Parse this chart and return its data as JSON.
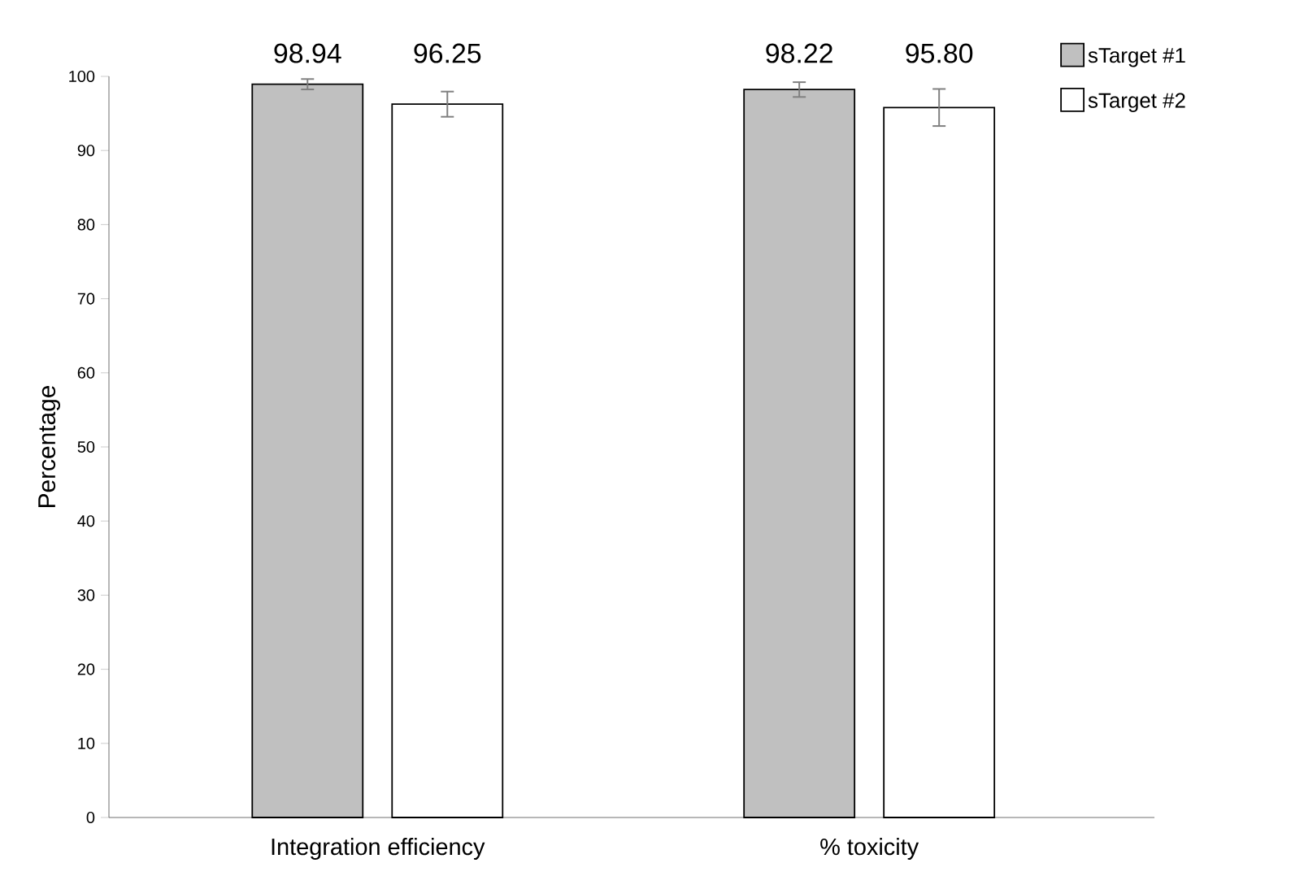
{
  "chart_data": {
    "type": "bar",
    "ylabel": "Percentage",
    "categories": [
      "Integration efficiency",
      "% toxicity"
    ],
    "series": [
      {
        "name": "sTarget #1",
        "color": "#c0c0c0",
        "values": [
          98.94,
          98.22
        ],
        "errors": [
          0.7,
          1.0
        ],
        "value_labels": [
          "98.94",
          "98.22"
        ]
      },
      {
        "name": "sTarget #2",
        "color": "#ffffff",
        "values": [
          96.25,
          95.8
        ],
        "errors": [
          1.7,
          2.5
        ],
        "value_labels": [
          "96.25",
          "95.80"
        ]
      }
    ],
    "ylim": [
      0,
      100
    ],
    "yticks": [
      0,
      10,
      20,
      30,
      40,
      50,
      60,
      70,
      80,
      90,
      100
    ],
    "legend": "top right"
  }
}
